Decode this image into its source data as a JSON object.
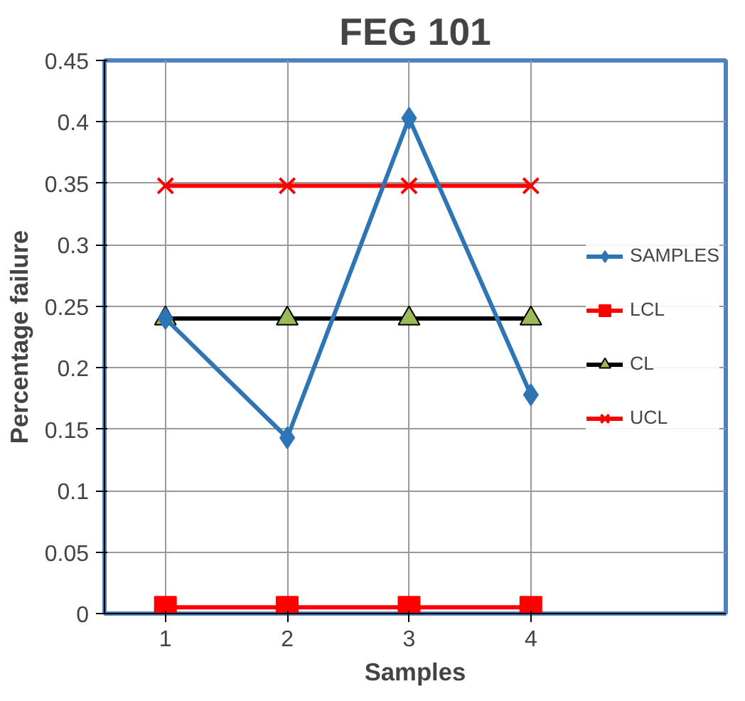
{
  "chart_data": {
    "type": "line",
    "title": "FEG 101",
    "xlabel": "Samples",
    "ylabel": "Percentage failure",
    "categories": [
      "1",
      "2",
      "3",
      "4"
    ],
    "series": [
      {
        "name": "SAMPLES",
        "color": "#2e75b6",
        "marker": "diamond",
        "values": [
          0.24,
          0.143,
          0.403,
          0.178
        ]
      },
      {
        "name": "LCL",
        "color": "#ff0000",
        "marker": "square",
        "values": [
          0.005,
          0.005,
          0.005,
          0.005
        ]
      },
      {
        "name": "CL",
        "color": "#000000",
        "marker": "triangle",
        "values": [
          0.24,
          0.24,
          0.24,
          0.24
        ]
      },
      {
        "name": "UCL",
        "color": "#ff0000",
        "marker": "cross",
        "values": [
          0.348,
          0.348,
          0.348,
          0.348
        ]
      }
    ],
    "ylim": [
      0,
      0.45
    ],
    "yticks": [
      0,
      0.05,
      0.1,
      0.15,
      0.2,
      0.25,
      0.3,
      0.35,
      0.4,
      0.45
    ],
    "grid": true,
    "legend": "right",
    "line_style": "solid"
  }
}
